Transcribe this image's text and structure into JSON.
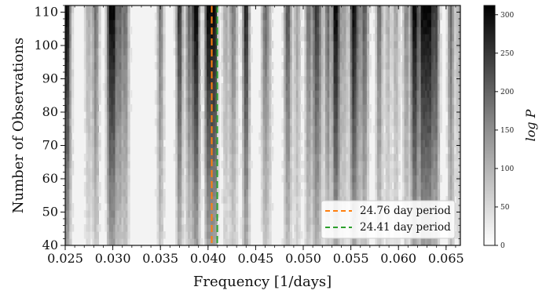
{
  "chart_data": {
    "type": "heatmap",
    "title": "",
    "xlabel": "Frequency [1/days]",
    "ylabel": "Number of Observations",
    "xlim": [
      0.025,
      0.0665
    ],
    "ylim": [
      40,
      112
    ],
    "xticks": [
      "0.025",
      "0.030",
      "0.035",
      "0.040",
      "0.045",
      "0.050",
      "0.055",
      "0.060",
      "0.065"
    ],
    "yticks": [
      "40",
      "50",
      "60",
      "70",
      "80",
      "90",
      "100",
      "110"
    ],
    "colorbar": {
      "label": "log P",
      "range": [
        0,
        312
      ],
      "ticks": [
        "0",
        "50",
        "100",
        "150",
        "200",
        "250",
        "300"
      ],
      "colormap": "greys"
    },
    "grid": false,
    "legend_position": "lower-right",
    "series": [
      {
        "name": "24.76 day period",
        "frequency": 0.04039,
        "color": "#ff7f0e",
        "style": "dashed"
      },
      {
        "name": "24.41 day period",
        "frequency": 0.04097,
        "color": "#2ca02c",
        "style": "dashed"
      }
    ],
    "dominant_peaks": [
      {
        "frequency": 0.0405,
        "intensity": 300
      },
      {
        "frequency": 0.04,
        "intensity": 230
      },
      {
        "frequency": 0.038,
        "intensity": 190
      },
      {
        "frequency": 0.037,
        "intensity": 180
      },
      {
        "frequency": 0.035,
        "intensity": 170
      },
      {
        "frequency": 0.0625,
        "intensity": 200
      },
      {
        "frequency": 0.0655,
        "intensity": 190
      },
      {
        "frequency": 0.03,
        "intensity": 140
      },
      {
        "frequency": 0.044,
        "intensity": 150
      },
      {
        "frequency": 0.0485,
        "intensity": 120
      }
    ]
  }
}
